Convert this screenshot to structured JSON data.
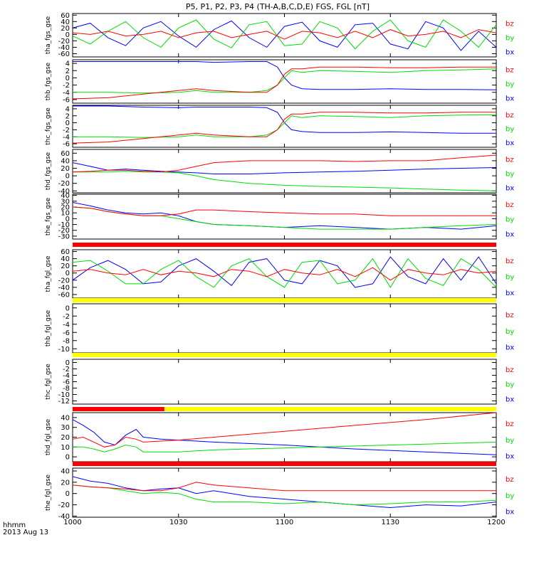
{
  "page_title": "P5, P1, P2, P3, P4 (TH-A,B,C,D,E) FGS, FGL [nT]",
  "time_axis": {
    "ticks": [
      "1000",
      "1030",
      "1100",
      "1130",
      "1200"
    ],
    "label_line1": "hhmm",
    "label_line2": "2013 Aug 13"
  },
  "colors": {
    "bx": "#0000ff",
    "by": "#00dd00",
    "bz": "#ff0000",
    "bar_red": "#ff0000",
    "bar_yellow": "#ffff00",
    "axis": "#000000"
  },
  "chart_data": [
    {
      "type": "line",
      "ylabel": "tha_fgs_gse",
      "yticks": [
        "60",
        "40",
        "20",
        "0",
        "-20",
        "-40",
        "-60"
      ],
      "ylim": [
        -70,
        65
      ],
      "legend": [
        "bz",
        "by",
        "bx"
      ],
      "x_minutes": [
        0,
        5,
        10,
        15,
        20,
        25,
        30,
        35,
        40,
        45,
        50,
        55,
        60,
        65,
        70,
        75,
        80,
        85,
        90,
        95,
        100,
        105,
        110,
        115,
        120
      ],
      "series": [
        {
          "name": "bx",
          "values": [
            20,
            35,
            -10,
            -35,
            20,
            40,
            -5,
            -40,
            15,
            42,
            -10,
            -40,
            25,
            38,
            -20,
            -40,
            30,
            35,
            -30,
            -45,
            40,
            20,
            -50,
            10,
            -40
          ]
        },
        {
          "name": "by",
          "values": [
            -5,
            -30,
            10,
            40,
            -10,
            -40,
            20,
            45,
            -15,
            -42,
            30,
            40,
            -35,
            -30,
            40,
            20,
            -45,
            10,
            45,
            -20,
            -40,
            45,
            10,
            -40,
            30
          ]
        },
        {
          "name": "bz",
          "values": [
            5,
            0,
            10,
            -5,
            0,
            10,
            -10,
            5,
            10,
            -10,
            0,
            10,
            -15,
            10,
            5,
            -10,
            10,
            -10,
            15,
            -5,
            0,
            10,
            -10,
            15,
            5
          ]
        }
      ]
    },
    {
      "type": "line",
      "ylabel": "thb_fgs_gse",
      "yticks": [
        "4",
        "2",
        "0",
        "-2",
        "-4",
        "-6"
      ],
      "ylim": [
        -7,
        5
      ],
      "legend": [
        "bz",
        "by",
        "bx"
      ],
      "x_minutes": [
        0,
        10,
        20,
        30,
        35,
        40,
        50,
        55,
        58,
        60,
        62,
        65,
        70,
        80,
        90,
        100,
        110,
        120
      ],
      "series": [
        {
          "name": "bx",
          "values": [
            4.5,
            4.5,
            4.5,
            4.5,
            4.5,
            4.3,
            4.5,
            4.5,
            3,
            0,
            -2,
            -3,
            -3.2,
            -3.2,
            -3,
            -3.2,
            -3.2,
            -3.3
          ]
        },
        {
          "name": "by",
          "values": [
            -4,
            -4,
            -4.2,
            -4,
            -3.5,
            -4,
            -4,
            -3.5,
            -2,
            0,
            2,
            1.5,
            2,
            1.8,
            1.5,
            2,
            2.2,
            2.5
          ]
        },
        {
          "name": "bz",
          "values": [
            -5.8,
            -5.5,
            -4.5,
            -3.5,
            -3,
            -3.5,
            -4,
            -4,
            -2,
            1,
            2.5,
            2.5,
            3,
            3,
            2.8,
            2.8,
            3,
            3
          ]
        }
      ]
    },
    {
      "type": "line",
      "ylabel": "thc_fgs_gse",
      "yticks": [
        "4",
        "2",
        "0",
        "-2",
        "-4",
        "-6"
      ],
      "ylim": [
        -7,
        5
      ],
      "legend": [
        "bz",
        "by",
        "bx"
      ],
      "x_minutes": [
        0,
        10,
        20,
        30,
        35,
        40,
        50,
        55,
        58,
        60,
        62,
        65,
        70,
        80,
        90,
        100,
        110,
        120
      ],
      "series": [
        {
          "name": "bx",
          "values": [
            4.8,
            4.8,
            4.5,
            4.3,
            4.5,
            4.5,
            4.5,
            4.3,
            3,
            0,
            -2,
            -2.5,
            -2.8,
            -2.8,
            -2.6,
            -2.8,
            -3,
            -3
          ]
        },
        {
          "name": "by",
          "values": [
            -4,
            -4,
            -4.2,
            -4,
            -3.5,
            -4,
            -4,
            -3.5,
            -2,
            0,
            2,
            1.5,
            2,
            1.8,
            1.5,
            2,
            2.2,
            2.3
          ]
        },
        {
          "name": "bz",
          "values": [
            -5.8,
            -5.5,
            -4.5,
            -3.5,
            -3,
            -3.5,
            -4,
            -4,
            -2,
            1,
            2.5,
            2.5,
            3,
            3,
            2.8,
            2.8,
            3,
            3
          ]
        }
      ]
    },
    {
      "type": "line",
      "ylabel": "thd_fgs_gse",
      "yticks": [
        "60",
        "40",
        "20",
        "0",
        "-20",
        "-40"
      ],
      "ylim": [
        -45,
        70
      ],
      "legend": [
        "bz",
        "by",
        "bx"
      ],
      "x_minutes": [
        0,
        5,
        10,
        15,
        20,
        25,
        30,
        35,
        40,
        50,
        60,
        70,
        80,
        90,
        100,
        110,
        120
      ],
      "series": [
        {
          "name": "bx",
          "values": [
            35,
            25,
            15,
            18,
            15,
            12,
            10,
            8,
            5,
            5,
            8,
            10,
            12,
            15,
            18,
            20,
            22
          ]
        },
        {
          "name": "by",
          "values": [
            10,
            10,
            10,
            12,
            10,
            10,
            8,
            0,
            -10,
            -20,
            -25,
            -28,
            -30,
            -32,
            -35,
            -38,
            -40
          ]
        },
        {
          "name": "bz",
          "values": [
            10,
            12,
            15,
            15,
            12,
            10,
            15,
            25,
            35,
            40,
            40,
            40,
            38,
            40,
            40,
            48,
            55
          ]
        }
      ]
    },
    {
      "type": "line",
      "ylabel": "the_fgs_gse",
      "yticks": [
        "40",
        "30",
        "20",
        "10",
        "0",
        "-10",
        "-20",
        "-30"
      ],
      "ylim": [
        -35,
        42
      ],
      "legend": [
        "bz",
        "by",
        "bx"
      ],
      "x_minutes": [
        0,
        5,
        10,
        15,
        20,
        25,
        30,
        35,
        40,
        50,
        60,
        70,
        80,
        90,
        100,
        110,
        120
      ],
      "series": [
        {
          "name": "bx",
          "values": [
            28,
            22,
            15,
            10,
            8,
            10,
            5,
            -5,
            -10,
            -12,
            -15,
            -12,
            -15,
            -18,
            -15,
            -18,
            -12
          ]
        },
        {
          "name": "by",
          "values": [
            20,
            18,
            12,
            8,
            5,
            5,
            0,
            -5,
            -10,
            -12,
            -15,
            -18,
            -18,
            -18,
            -15,
            -12,
            -10
          ]
        },
        {
          "name": "bz",
          "values": [
            20,
            18,
            12,
            8,
            5,
            5,
            8,
            15,
            15,
            12,
            10,
            8,
            8,
            5,
            5,
            5,
            5
          ]
        }
      ]
    },
    {
      "type": "line",
      "ylabel": "tha_fgl_gse",
      "yticks": [
        "60",
        "40",
        "20",
        "0",
        "-20",
        "-40",
        "-60"
      ],
      "ylim": [
        -70,
        65
      ],
      "legend": [
        "bz",
        "by",
        "bx"
      ],
      "x_minutes": [
        0,
        5,
        10,
        15,
        20,
        25,
        30,
        35,
        40,
        45,
        50,
        55,
        60,
        65,
        70,
        75,
        80,
        85,
        90,
        95,
        100,
        105,
        110,
        115,
        120
      ],
      "series": [
        {
          "name": "bx",
          "values": [
            -20,
            15,
            35,
            10,
            -30,
            -25,
            20,
            40,
            5,
            -35,
            30,
            40,
            -20,
            -30,
            35,
            20,
            -40,
            -30,
            45,
            -10,
            -30,
            40,
            -20,
            45,
            -30
          ]
        },
        {
          "name": "by",
          "values": [
            30,
            35,
            5,
            -30,
            -30,
            10,
            35,
            -10,
            -40,
            20,
            40,
            -10,
            -40,
            30,
            35,
            -30,
            -20,
            40,
            -40,
            40,
            -15,
            -35,
            40,
            10,
            -40
          ]
        },
        {
          "name": "bz",
          "values": [
            5,
            10,
            0,
            -5,
            10,
            -5,
            5,
            0,
            -10,
            10,
            5,
            -10,
            10,
            0,
            -5,
            10,
            -10,
            15,
            -20,
            10,
            0,
            -5,
            10,
            0,
            5
          ]
        }
      ]
    },
    {
      "type": "line",
      "ylabel": "thb_fgl_gse",
      "yticks": [
        "0",
        "-2",
        "-4",
        "-6",
        "-8",
        "-10"
      ],
      "ylim": [
        -11,
        1
      ],
      "legend": [
        "bz",
        "by",
        "bx"
      ],
      "x_minutes": [],
      "series": []
    },
    {
      "type": "line",
      "ylabel": "thc_fgl_gse",
      "yticks": [
        "0",
        "-2",
        "-4",
        "-6",
        "-8",
        "-10",
        "-12"
      ],
      "ylim": [
        -13,
        1
      ],
      "legend": [
        "bz",
        "by",
        "bx"
      ],
      "x_minutes": [],
      "series": []
    },
    {
      "type": "line",
      "ylabel": "thd_fgl_gse",
      "yticks": [
        "40",
        "30",
        "20",
        "10",
        "0"
      ],
      "ylim": [
        -5,
        45
      ],
      "legend": [
        "bz",
        "by",
        "bx"
      ],
      "x_minutes": [
        0,
        3,
        6,
        9,
        12,
        15,
        18,
        20,
        25,
        30,
        40,
        60,
        80,
        100,
        120
      ],
      "series": [
        {
          "name": "bx",
          "values": [
            38,
            32,
            25,
            15,
            12,
            22,
            28,
            20,
            18,
            17,
            15,
            12,
            8,
            5,
            2
          ]
        },
        {
          "name": "by",
          "values": [
            10,
            10,
            8,
            5,
            8,
            12,
            10,
            5,
            5,
            5,
            7,
            9,
            11,
            13,
            15
          ]
        },
        {
          "name": "bz",
          "values": [
            18,
            20,
            15,
            10,
            12,
            20,
            18,
            15,
            16,
            17,
            20,
            26,
            32,
            38,
            45
          ]
        }
      ]
    },
    {
      "type": "line",
      "ylabel": "the_fgl_gse",
      "yticks": [
        "40",
        "20",
        "0",
        "-20",
        "-40"
      ],
      "ylim": [
        -42,
        45
      ],
      "legend": [
        "bz",
        "by",
        "bx"
      ],
      "x_minutes": [
        0,
        5,
        10,
        15,
        20,
        25,
        30,
        35,
        40,
        50,
        60,
        70,
        80,
        90,
        100,
        110,
        120
      ],
      "series": [
        {
          "name": "bx",
          "values": [
            30,
            22,
            18,
            10,
            5,
            8,
            10,
            0,
            5,
            -5,
            -10,
            -15,
            -20,
            -25,
            -20,
            -22,
            -15
          ]
        },
        {
          "name": "by",
          "values": [
            15,
            12,
            10,
            5,
            0,
            2,
            0,
            -10,
            -15,
            -15,
            -18,
            -15,
            -20,
            -18,
            -15,
            -15,
            -12
          ]
        },
        {
          "name": "bz",
          "values": [
            15,
            12,
            10,
            8,
            5,
            5,
            10,
            20,
            15,
            10,
            5,
            5,
            5,
            5,
            5,
            5,
            5
          ]
        }
      ]
    }
  ]
}
